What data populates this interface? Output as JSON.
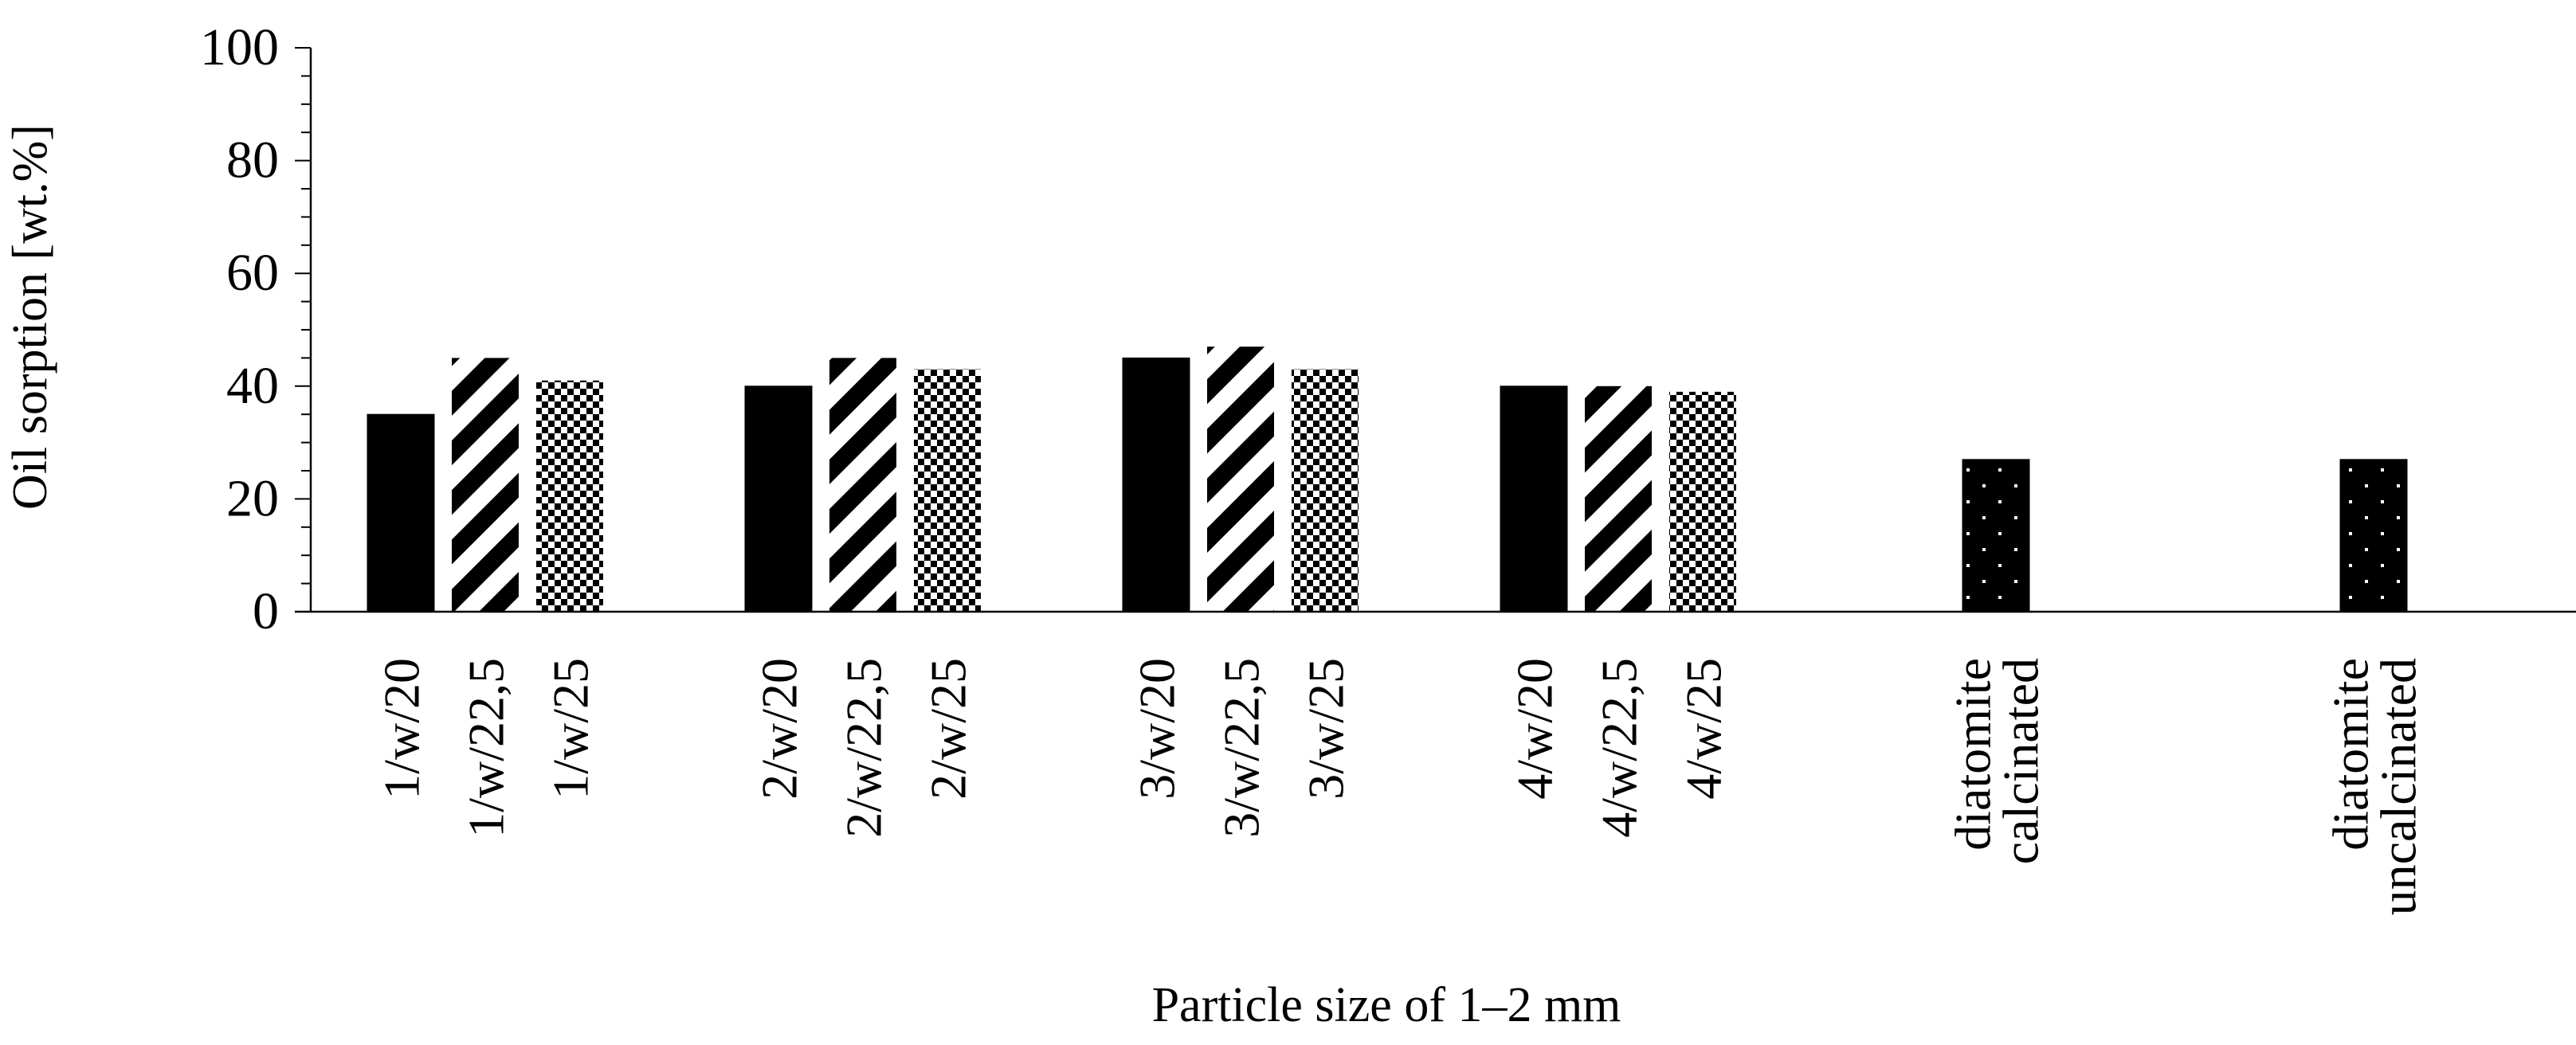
{
  "chart_data": {
    "type": "bar",
    "xlabel": "Particle size of 1–2 mm",
    "ylabel": "Oil sorption [wt.%]",
    "ylim": [
      0,
      100
    ],
    "yticks": [
      "0",
      "20",
      "40",
      "60",
      "80",
      "100"
    ],
    "minor_tick_step": 4,
    "grid": false,
    "legend": "none",
    "groups": [
      {
        "bars": [
          {
            "label": "1/w/20",
            "value": 35,
            "pattern": "solid"
          },
          {
            "label": "1/w/22,5",
            "value": 45,
            "pattern": "diagonal-stripes"
          },
          {
            "label": "1/w/25",
            "value": 41,
            "pattern": "checkerboard"
          }
        ]
      },
      {
        "bars": [
          {
            "label": "2/w/20",
            "value": 40,
            "pattern": "solid"
          },
          {
            "label": "2/w/22,5",
            "value": 45,
            "pattern": "diagonal-stripes"
          },
          {
            "label": "2/w/25",
            "value": 43,
            "pattern": "checkerboard"
          }
        ]
      },
      {
        "bars": [
          {
            "label": "3/w/20",
            "value": 45,
            "pattern": "solid"
          },
          {
            "label": "3/w/22,5",
            "value": 47,
            "pattern": "diagonal-stripes"
          },
          {
            "label": "3/w/25",
            "value": 43,
            "pattern": "checkerboard"
          }
        ]
      },
      {
        "bars": [
          {
            "label": "4/w/20",
            "value": 40,
            "pattern": "solid"
          },
          {
            "label": "4/w/22,5",
            "value": 40,
            "pattern": "diagonal-stripes"
          },
          {
            "label": "4/w/25",
            "value": 39,
            "pattern": "checkerboard"
          }
        ]
      },
      {
        "bars": [
          {
            "label": "diatomite calcinated",
            "label_lines": [
              "diatomite",
              "calcinated"
            ],
            "value": 27,
            "pattern": "dotted"
          }
        ]
      },
      {
        "bars": [
          {
            "label": "diatomite uncalcinated",
            "label_lines": [
              "diatomite",
              "uncalcinated"
            ],
            "value": 27,
            "pattern": "dotted"
          }
        ]
      }
    ],
    "colors": {
      "bar": "#000000",
      "background": "#ffffff",
      "axis": "#000000"
    }
  }
}
